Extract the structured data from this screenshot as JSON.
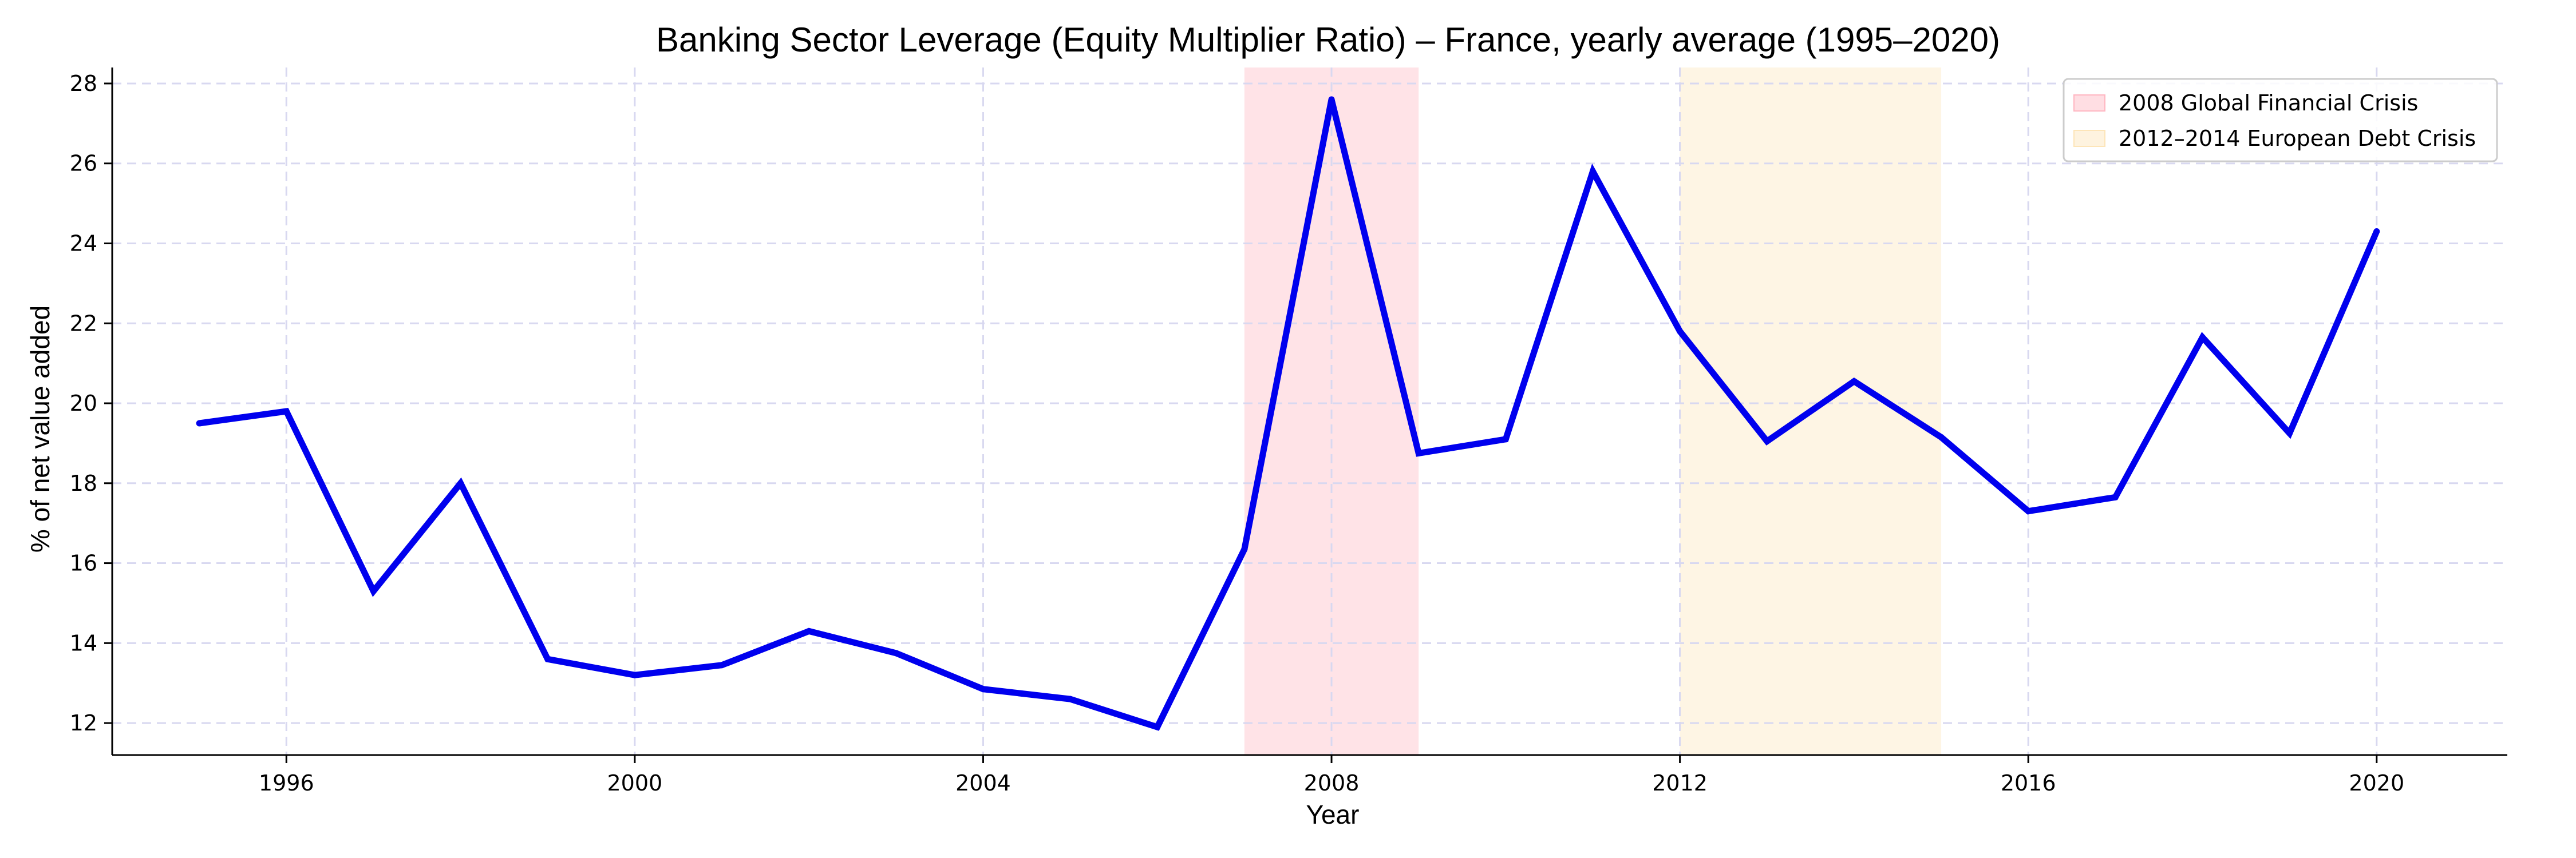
{
  "chart_data": {
    "type": "line",
    "title": "Banking Sector Leverage (Equity Multiplier Ratio) – France, yearly average (1995–2020)",
    "xlabel": "Year",
    "ylabel": "% of net value added",
    "xlim": [
      1994,
      2021.5
    ],
    "ylim": [
      11.2,
      28.4
    ],
    "xticks": [
      1996,
      2000,
      2004,
      2008,
      2012,
      2016,
      2020
    ],
    "yticks": [
      12,
      14,
      16,
      18,
      20,
      22,
      24,
      26,
      28
    ],
    "grid": true,
    "legend_position": "top-right",
    "x": [
      1995,
      1996,
      1997,
      1998,
      1999,
      2000,
      2001,
      2002,
      2003,
      2004,
      2005,
      2006,
      2007,
      2008,
      2009,
      2010,
      2011,
      2012,
      2013,
      2014,
      2015,
      2016,
      2017,
      2018,
      2019,
      2020
    ],
    "series": [
      {
        "values": [
          19.5,
          19.8,
          15.3,
          18.0,
          13.6,
          13.2,
          13.45,
          14.3,
          13.75,
          12.85,
          12.6,
          11.9,
          16.35,
          27.6,
          18.75,
          19.1,
          25.8,
          21.8,
          19.05,
          20.55,
          19.15,
          17.3,
          17.65,
          21.65,
          19.25,
          24.3
        ],
        "color": "#0000ee"
      }
    ],
    "shaded_regions": [
      {
        "label": "2008 Global Financial Crisis",
        "start": 2007,
        "end": 2009,
        "color": "#ffb6c1"
      },
      {
        "label": "2012–2014 European Debt Crisis",
        "start": 2012,
        "end": 2015,
        "color": "#fde5b8"
      }
    ]
  }
}
